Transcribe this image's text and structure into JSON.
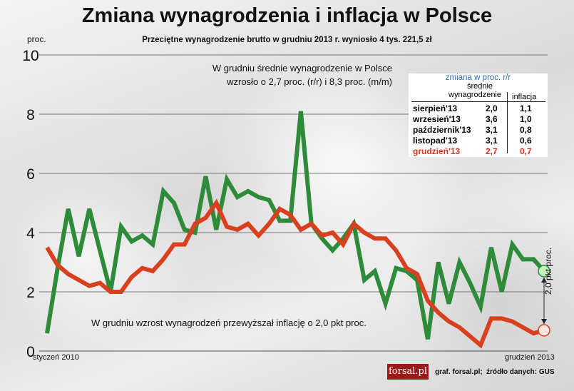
{
  "header": {
    "title": "Zmiana wynagrodzenia i inflacja w Polsce",
    "subtitle": "Przeciętne wynagrodzenie brutto w grudniu 2013 r. wyniosło 4 tys. 221,5 zł",
    "y_unit": "proc."
  },
  "annotations": {
    "top_line1": "W grudniu średnie wynagrodzenie w Polsce",
    "top_line2": "wzrosło o 2,7 proc. (r/r) i 8,3 proc. (m/m)",
    "bottom": "W grudniu wzrost wynagrodzeń przewyższał inflację o 2,0 pkt proc.",
    "difference": "2,0 pkt proc."
  },
  "table": {
    "header": "zmiana w proc. r/r",
    "col_wage_1": "średnie",
    "col_wage_2": "wynagrodzenie",
    "col_inflation": "inflacja",
    "rows": [
      {
        "month": "sierpień'13",
        "wage": "2,0",
        "inflation": "1,1"
      },
      {
        "month": "wrzesień'13",
        "wage": "3,6",
        "inflation": "1,0"
      },
      {
        "month": "październik'13",
        "wage": "3,1",
        "inflation": "0,8"
      },
      {
        "month": "listopad'13",
        "wage": "3,1",
        "inflation": "0,6"
      },
      {
        "month": "grudzień'13",
        "wage": "2,7",
        "inflation": "0,7"
      }
    ]
  },
  "footer": {
    "logo": "forsal.pl",
    "credit": "graf. forsal.pl;",
    "source": "źródło danych: GUS"
  },
  "colors": {
    "wage": "#2e8b3a",
    "inflation": "#d8401f",
    "highlight": "#d8341f",
    "wage_marker": "#c6f0bf",
    "inflation_marker": "#fde6df"
  },
  "chart_data": {
    "type": "line",
    "title": "Zmiana wynagrodzenia i inflacja w Polsce",
    "ylabel": "proc.",
    "ylim": [
      0,
      10
    ],
    "yticks": [
      "0",
      "2",
      "4",
      "6",
      "8",
      "10"
    ],
    "grid": true,
    "x_start_label": "styczeń 2010",
    "x_end_label": "grudzień 2013",
    "x_count": 48,
    "series": [
      {
        "name": "średnie wynagrodzenie",
        "color": "#2e8b3a",
        "values": [
          0.6,
          2.8,
          4.8,
          3.2,
          4.8,
          3.4,
          2.0,
          4.2,
          3.7,
          3.9,
          3.6,
          5.4,
          5.0,
          4.1,
          4.0,
          5.9,
          4.1,
          5.8,
          5.2,
          5.4,
          5.2,
          5.1,
          4.4,
          4.4,
          8.1,
          4.3,
          3.8,
          3.4,
          3.8,
          4.3,
          2.4,
          2.7,
          1.6,
          2.8,
          2.7,
          2.4,
          0.4,
          3.0,
          1.6,
          3.0,
          2.3,
          1.5,
          3.5,
          2.0,
          3.6,
          3.1,
          3.1,
          2.7
        ]
      },
      {
        "name": "inflacja",
        "color": "#d8401f",
        "values": [
          3.5,
          2.9,
          2.6,
          2.4,
          2.2,
          2.3,
          2.0,
          2.0,
          2.5,
          2.8,
          2.7,
          3.1,
          3.6,
          3.6,
          4.3,
          4.5,
          5.0,
          4.2,
          4.1,
          4.3,
          3.9,
          4.3,
          4.8,
          4.6,
          4.1,
          4.3,
          3.9,
          4.0,
          3.6,
          4.3,
          4.0,
          3.8,
          3.8,
          3.4,
          2.8,
          2.6,
          1.7,
          1.3,
          1.0,
          0.8,
          0.5,
          0.2,
          1.1,
          1.1,
          1.0,
          0.8,
          0.6,
          0.7
        ]
      }
    ]
  }
}
